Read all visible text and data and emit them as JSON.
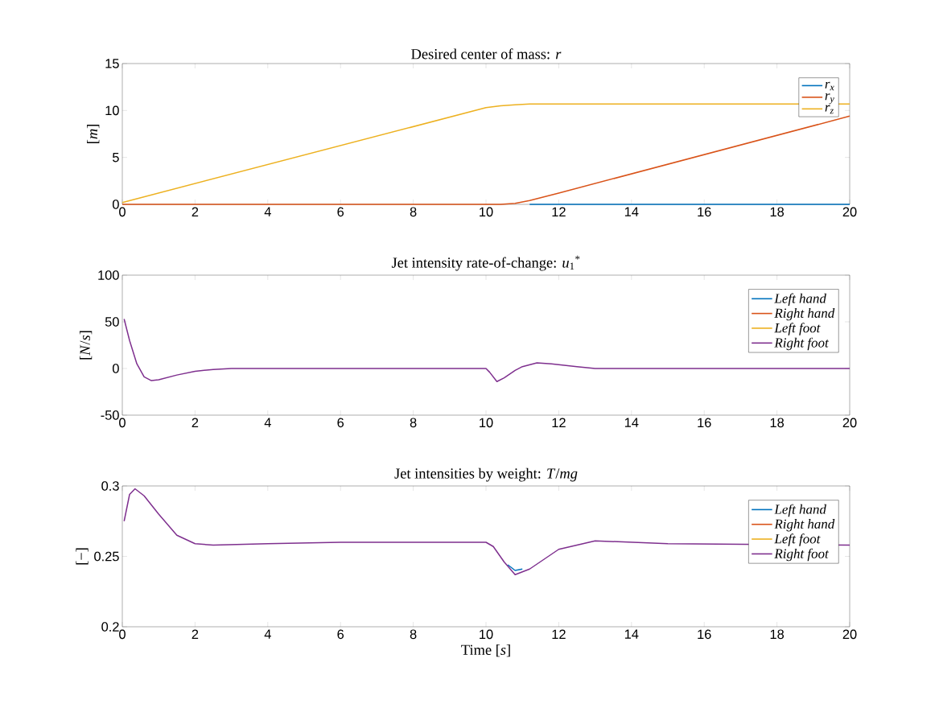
{
  "chart_data": [
    {
      "type": "line",
      "title": "Desired center of mass: *r*",
      "ylabel": "[*m*]",
      "xlim": [
        0,
        20
      ],
      "ylim": [
        0,
        15
      ],
      "xticks": [
        0,
        2,
        4,
        6,
        8,
        10,
        12,
        14,
        16,
        18,
        20
      ],
      "yticks": [
        0,
        5,
        10,
        15
      ],
      "legend": "top right",
      "x": [
        0,
        10,
        10.4,
        10.8,
        11.2,
        12,
        20
      ],
      "series": [
        {
          "name": "*r*$_{x}$",
          "color": "#0072bd",
          "x": [
            11.2,
            20
          ],
          "values": [
            0,
            0
          ]
        },
        {
          "name": "*r*$_{y}$",
          "color": "#d95319",
          "values": [
            0,
            0,
            0,
            0.1,
            0.4,
            1.2,
            9.4
          ]
        },
        {
          "name": "*r*$_{z}$",
          "color": "#edb120",
          "values": [
            0.2,
            10.3,
            10.5,
            10.6,
            10.7,
            10.7,
            10.7
          ]
        }
      ]
    },
    {
      "type": "line",
      "title": "Jet intensity rate-of-change: *u*$_{1}$$^{*}$",
      "ylabel": "[*N*/*s*]",
      "xlim": [
        0,
        20
      ],
      "ylim": [
        -50,
        100
      ],
      "xticks": [
        0,
        2,
        4,
        6,
        8,
        10,
        12,
        14,
        16,
        18,
        20
      ],
      "yticks": [
        -50,
        0,
        50,
        100
      ],
      "legend": "top right",
      "x": [
        0.05,
        0.2,
        0.4,
        0.6,
        0.8,
        1.0,
        1.5,
        2,
        2.5,
        3,
        10,
        10.1,
        10.3,
        10.5,
        10.8,
        11,
        11.4,
        11.8,
        12.5,
        13,
        14,
        15,
        20
      ],
      "series": [
        {
          "name": "Left hand",
          "color": "#0072bd",
          "values": [
            null,
            null,
            null,
            null,
            null,
            null,
            null,
            null,
            null,
            null,
            null,
            null,
            null,
            null,
            null,
            null,
            null,
            null,
            null,
            null,
            null,
            null,
            null
          ]
        },
        {
          "name": "Right hand",
          "color": "#d95319",
          "values": [
            null,
            null,
            null,
            null,
            null,
            null,
            null,
            null,
            null,
            null,
            null,
            null,
            null,
            null,
            null,
            null,
            null,
            null,
            null,
            null,
            null,
            null,
            null
          ]
        },
        {
          "name": "Left foot",
          "color": "#edb120",
          "values": [
            null,
            null,
            null,
            null,
            null,
            null,
            null,
            null,
            null,
            null,
            null,
            null,
            null,
            null,
            null,
            null,
            null,
            null,
            null,
            null,
            null,
            null,
            null
          ]
        },
        {
          "name": "Right foot",
          "color": "#7e2f8e",
          "values": [
            53,
            30,
            5,
            -9,
            -13,
            -12,
            -7,
            -3,
            -1,
            0,
            0,
            -4,
            -14,
            -10,
            -2,
            2,
            6,
            5,
            2,
            0,
            0,
            0,
            0
          ]
        }
      ]
    },
    {
      "type": "line",
      "title": "Jet intensities by weight: *T*/*mg*",
      "xlabel": "Time [*s*]",
      "ylabel": "[−]",
      "xlim": [
        0,
        20
      ],
      "ylim": [
        0.2,
        0.3
      ],
      "xticks": [
        0,
        2,
        4,
        6,
        8,
        10,
        12,
        14,
        16,
        18,
        20
      ],
      "yticks": [
        0.2,
        0.25,
        0.3
      ],
      "legend": "top right",
      "x": [
        0.05,
        0.2,
        0.35,
        0.6,
        1,
        1.5,
        2,
        2.5,
        4,
        6,
        10,
        10.2,
        10.5,
        10.8,
        11.2,
        12,
        13,
        15,
        20
      ],
      "series": [
        {
          "name": "Left hand",
          "color": "#0072bd",
          "x": [
            10.6,
            10.8,
            11.0
          ],
          "values": [
            0.244,
            0.24,
            0.241
          ]
        },
        {
          "name": "Right hand",
          "color": "#d95319",
          "values": [
            null,
            null,
            null,
            null,
            null,
            null,
            null,
            null,
            null,
            null,
            null,
            null,
            null,
            null,
            null,
            null,
            null,
            null,
            null
          ]
        },
        {
          "name": "Left foot",
          "color": "#edb120",
          "values": [
            null,
            null,
            null,
            null,
            null,
            null,
            null,
            null,
            null,
            null,
            null,
            null,
            null,
            null,
            null,
            null,
            null,
            null,
            null
          ]
        },
        {
          "name": "Right foot",
          "color": "#7e2f8e",
          "values": [
            0.275,
            0.294,
            0.298,
            0.293,
            0.28,
            0.265,
            0.259,
            0.258,
            0.259,
            0.26,
            0.26,
            0.257,
            0.246,
            0.237,
            0.241,
            0.255,
            0.261,
            0.259,
            0.258
          ]
        }
      ]
    }
  ]
}
